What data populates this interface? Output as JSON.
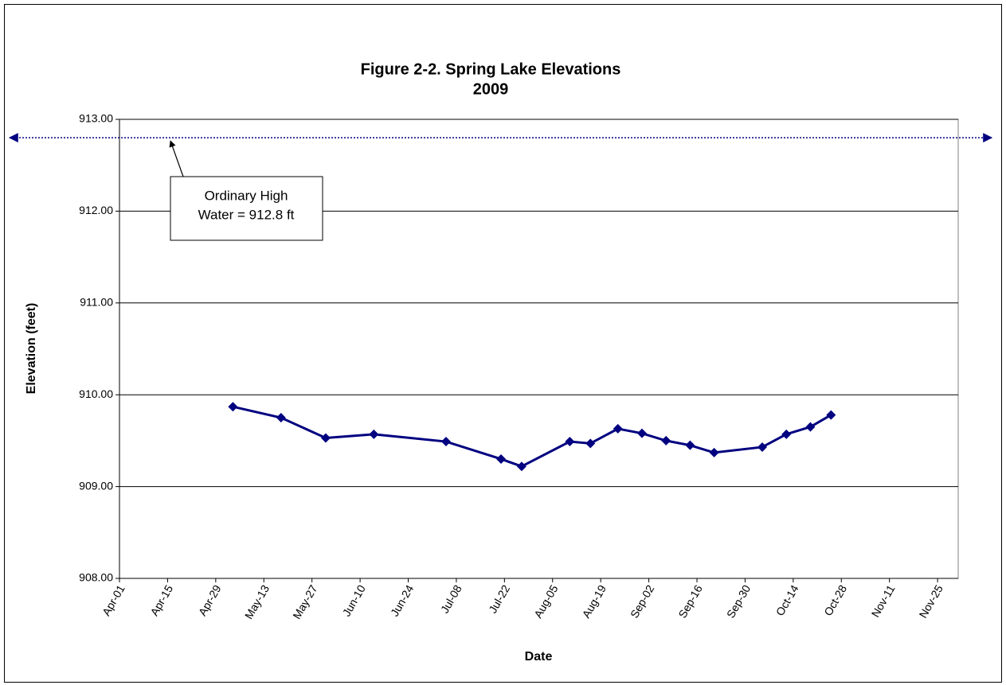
{
  "chart_data": {
    "type": "line",
    "title": "Figure 2-2. Spring Lake Elevations",
    "subtitle": "2009",
    "x_label": "Date",
    "y_label": "Elevation (feet)",
    "x": [
      "2009-05-04",
      "2009-05-18",
      "2009-05-31",
      "2009-06-14",
      "2009-07-05",
      "2009-07-21",
      "2009-07-27",
      "2009-08-10",
      "2009-08-16",
      "2009-08-24",
      "2009-08-31",
      "2009-09-07",
      "2009-09-14",
      "2009-09-21",
      "2009-10-05",
      "2009-10-12",
      "2009-10-19",
      "2009-10-25"
    ],
    "series": [
      {
        "name": "Elevation",
        "color": "#000080",
        "values": [
          909.87,
          909.75,
          909.53,
          909.57,
          909.49,
          909.3,
          909.22,
          909.49,
          909.47,
          909.63,
          909.58,
          909.5,
          909.45,
          909.37,
          909.43,
          909.57,
          909.65,
          909.78
        ]
      }
    ],
    "xlim": [
      "2009-04-01",
      "2009-12-01"
    ],
    "xticks": [
      {
        "value": "2009-04-01",
        "label": "Apr-01"
      },
      {
        "value": "2009-04-15",
        "label": "Apr-15"
      },
      {
        "value": "2009-04-29",
        "label": "Apr-29"
      },
      {
        "value": "2009-05-13",
        "label": "May-13"
      },
      {
        "value": "2009-05-27",
        "label": "May-27"
      },
      {
        "value": "2009-06-10",
        "label": "Jun-10"
      },
      {
        "value": "2009-06-24",
        "label": "Jun-24"
      },
      {
        "value": "2009-07-08",
        "label": "Jul-08"
      },
      {
        "value": "2009-07-22",
        "label": "Jul-22"
      },
      {
        "value": "2009-08-05",
        "label": "Aug-05"
      },
      {
        "value": "2009-08-19",
        "label": "Aug-19"
      },
      {
        "value": "2009-09-02",
        "label": "Sep-02"
      },
      {
        "value": "2009-09-16",
        "label": "Sep-16"
      },
      {
        "value": "2009-09-30",
        "label": "Sep-30"
      },
      {
        "value": "2009-10-14",
        "label": "Oct-14"
      },
      {
        "value": "2009-10-28",
        "label": "Oct-28"
      },
      {
        "value": "2009-11-11",
        "label": "Nov-11"
      },
      {
        "value": "2009-11-25",
        "label": "Nov-25"
      }
    ],
    "ylim": [
      908,
      913
    ],
    "yticks": [
      {
        "value": 908,
        "label": "908.00"
      },
      {
        "value": 909,
        "label": "909.00"
      },
      {
        "value": 910,
        "label": "910.00"
      },
      {
        "value": 911,
        "label": "911.00"
      },
      {
        "value": 912,
        "label": "912.00"
      },
      {
        "value": 913,
        "label": "913.00"
      }
    ],
    "grid": true,
    "reference_line": {
      "value": 912.8,
      "color": "#000080"
    },
    "annotation": [
      "Ordinary High",
      "Water = 912.8 ft"
    ]
  }
}
